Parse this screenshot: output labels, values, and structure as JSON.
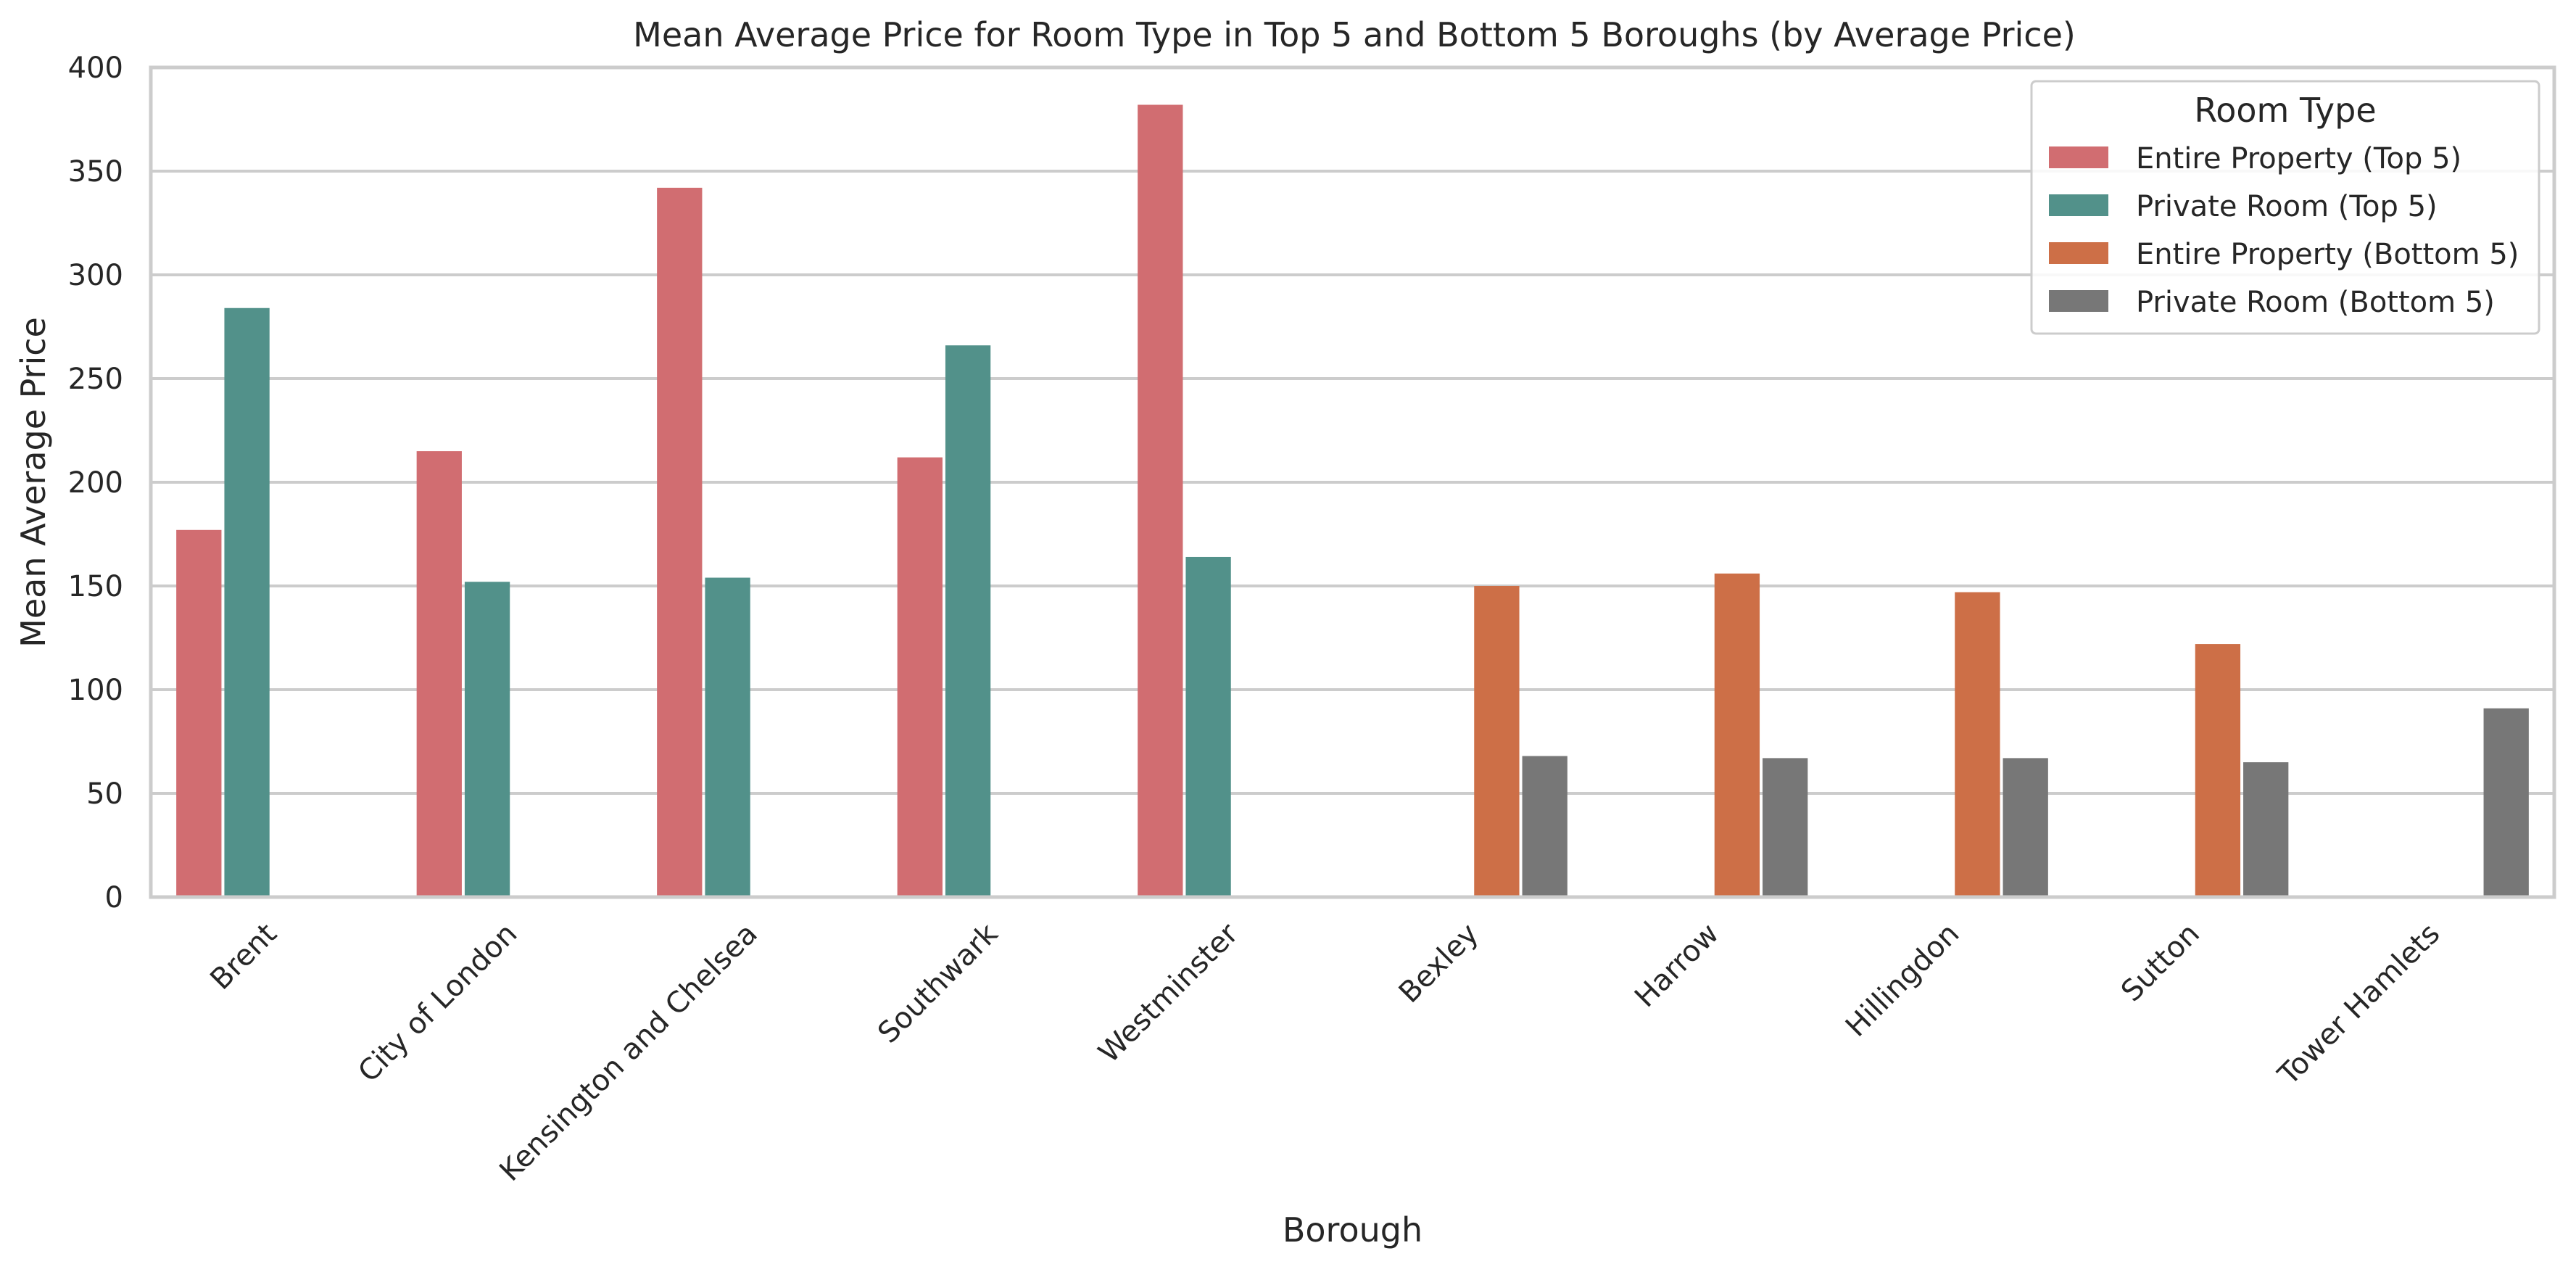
{
  "chart_data": {
    "type": "bar",
    "title": "Mean Average Price for Room Type in Top 5 and Bottom 5 Boroughs (by Average Price)",
    "xlabel": "Borough",
    "ylabel": "Mean Average Price",
    "ylim": [
      0,
      400
    ],
    "yticks": [
      "0",
      "50",
      "100",
      "150",
      "200",
      "250",
      "300",
      "350",
      "400"
    ],
    "grid": true,
    "legend_title": "Room Type",
    "legend_position": "top-right",
    "categories": [
      "Brent",
      "City of London",
      "Kensington and Chelsea",
      "Southwark",
      "Westminster",
      "Bexley",
      "Harrow",
      "Hillingdon",
      "Sutton",
      "Tower Hamlets"
    ],
    "series": [
      {
        "name": "Entire Property (Top 5)",
        "color": "#d16d71",
        "values": [
          177,
          215,
          342,
          212,
          382,
          null,
          null,
          null,
          null,
          null
        ]
      },
      {
        "name": "Private Room (Top 5)",
        "color": "#52918a",
        "values": [
          284,
          152,
          154,
          266,
          164,
          null,
          null,
          null,
          null,
          null
        ]
      },
      {
        "name": "Entire Property (Bottom 5)",
        "color": "#cd6f47",
        "values": [
          null,
          null,
          null,
          null,
          null,
          150,
          156,
          147,
          122,
          null
        ]
      },
      {
        "name": "Private Room (Bottom 5)",
        "color": "#777777",
        "values": [
          null,
          null,
          null,
          null,
          null,
          68,
          67,
          67,
          65,
          91
        ]
      }
    ]
  }
}
